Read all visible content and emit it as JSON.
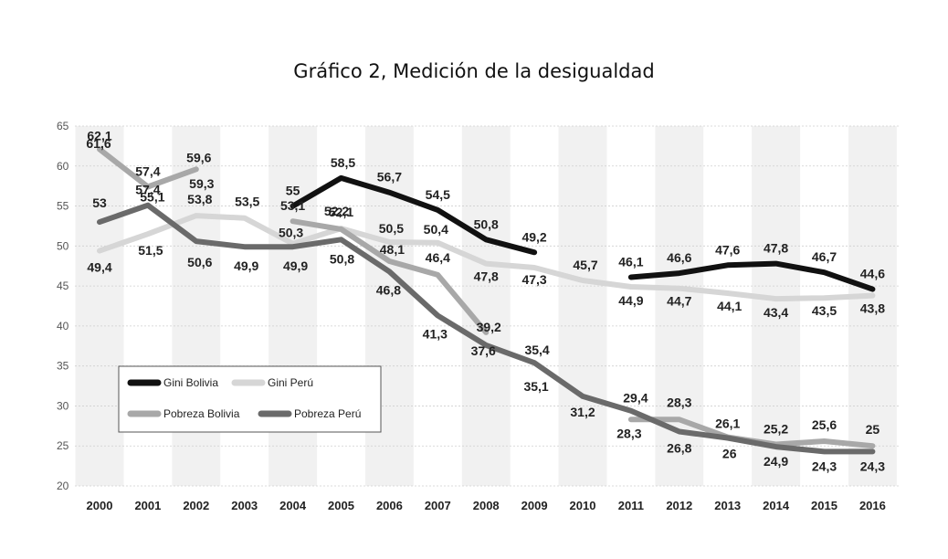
{
  "chart_data": {
    "type": "line",
    "title": "Gráfico 2, Medición de la desigualdad",
    "x": [
      "2000",
      "2001",
      "2002",
      "2003",
      "2004",
      "2005",
      "2006",
      "2007",
      "2008",
      "2009",
      "2010",
      "2011",
      "2012",
      "2013",
      "2014",
      "2015",
      "2016"
    ],
    "y_ticks": [
      "20",
      "25",
      "30",
      "35",
      "40",
      "45",
      "50",
      "55",
      "60",
      "65"
    ],
    "ylim": [
      20,
      65
    ],
    "grid": "alternating vertical bands",
    "legend_position": "lower-left",
    "series": [
      {
        "name": "Gini Bolivia",
        "color": "#111111",
        "values": [
          null,
          null,
          null,
          null,
          55,
          58.5,
          56.7,
          54.5,
          50.8,
          49.2,
          null,
          46.1,
          46.6,
          47.6,
          47.8,
          46.7,
          44.6
        ],
        "labels": [
          null,
          null,
          null,
          null,
          "55",
          "58,5",
          "56,7",
          "54,5",
          "50,8",
          "49,2",
          null,
          "46,1",
          "46,6",
          "47,6",
          "47,8",
          "46,7",
          "44,6"
        ]
      },
      {
        "name": "Gini Perú",
        "color": "#d6d6d6",
        "values": [
          49.4,
          51.5,
          53.8,
          53.5,
          50.3,
          52.2,
          50.5,
          50.4,
          47.8,
          47.3,
          45.7,
          44.9,
          44.7,
          44.1,
          43.4,
          43.5,
          43.8
        ],
        "labels": [
          "49,4",
          "51,5",
          "53,8",
          "53,5",
          "50,3",
          "52,2",
          "50,5",
          "50,4",
          "47,8",
          "47,3",
          "45,7",
          "44,9",
          "44,7",
          "44,1",
          "43,4",
          "43,5",
          "43,8"
        ]
      },
      {
        "name": "Pobreza Bolivia",
        "color": "#a8a8a8",
        "values": [
          62.1,
          57.4,
          59.6,
          null,
          53.1,
          52.1,
          48.1,
          46.4,
          39.2,
          null,
          null,
          28.3,
          28.3,
          26.1,
          25.2,
          25.6,
          25
        ],
        "labels": [
          "62,1",
          "57,4",
          "59,6",
          null,
          "53,1",
          "52,1",
          "48,1",
          "46,4",
          "39,2",
          null,
          null,
          "28,3",
          "28,3",
          "26,1",
          "25,2",
          "25,6",
          "25"
        ]
      },
      {
        "name": "Pobreza Perú",
        "color": "#6a6a6a",
        "values": [
          53,
          55.1,
          50.6,
          49.9,
          49.9,
          50.8,
          46.8,
          41.3,
          37.6,
          35.4,
          31.2,
          29.4,
          26.8,
          26,
          24.9,
          24.3,
          24.3
        ],
        "labels": [
          "53",
          "55,1",
          "50,6",
          "49,9",
          "49,9",
          "50,8",
          "46,8",
          "41,3",
          "37,6",
          "35,4",
          "31,2",
          "29,4",
          "26,8",
          "26",
          "24,9",
          "24,3",
          "24,3"
        ]
      }
    ],
    "extra_labels": [
      {
        "year": "2000",
        "value": 61.6,
        "text": "61,6"
      },
      {
        "year": "2001",
        "value": 57.4,
        "text": "57,4"
      },
      {
        "year": "2002",
        "value": 59.3,
        "text": "59,3"
      },
      {
        "year": "2009",
        "value": 35.1,
        "text": "35,1"
      }
    ]
  }
}
